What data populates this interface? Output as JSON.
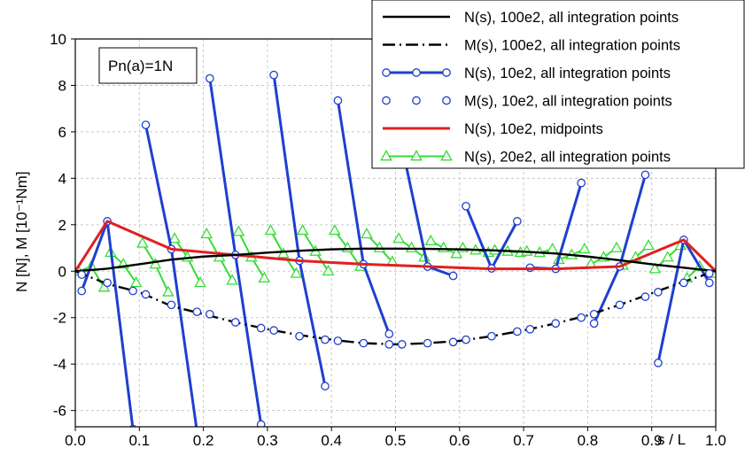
{
  "chart_data": {
    "type": "line",
    "title": "",
    "xlabel": "s / L",
    "ylabel": "N [N],  M [10⁻¹Nm]",
    "xlim": [
      0,
      1
    ],
    "ylim": [
      -6.7,
      10
    ],
    "x_ticks": [
      "0.0",
      "0.1",
      "0.2",
      "0.3",
      "0.4",
      "0.5",
      "0.6",
      "0.7",
      "0.8",
      "0.9",
      "1.0"
    ],
    "y_ticks": [
      "-6",
      "-4",
      "-2",
      "0",
      "2",
      "4",
      "6",
      "8",
      "10"
    ],
    "grid": true,
    "legend_position": "top-right",
    "annotation": "Pn(a)=1N",
    "series": [
      {
        "name": "N(s), 100e2, all integration points",
        "color": "#000000",
        "style": "solid",
        "marker": "none",
        "points": [
          [
            0,
            0
          ],
          [
            0.05,
            0.11
          ],
          [
            0.1,
            0.3
          ],
          [
            0.15,
            0.5
          ],
          [
            0.2,
            0.63
          ],
          [
            0.25,
            0.7
          ],
          [
            0.3,
            0.8
          ],
          [
            0.35,
            0.88
          ],
          [
            0.4,
            0.94
          ],
          [
            0.45,
            0.97
          ],
          [
            0.5,
            0.97
          ],
          [
            0.55,
            0.96
          ],
          [
            0.6,
            0.94
          ],
          [
            0.65,
            0.9
          ],
          [
            0.7,
            0.84
          ],
          [
            0.75,
            0.76
          ],
          [
            0.8,
            0.63
          ],
          [
            0.85,
            0.47
          ],
          [
            0.9,
            0.3
          ],
          [
            0.95,
            0.15
          ],
          [
            1,
            0
          ]
        ]
      },
      {
        "name": "M(s), 100e2, all integration points",
        "color": "#000000",
        "style": "dashed",
        "marker": "none",
        "points": [
          [
            0,
            0
          ],
          [
            0.05,
            -0.55
          ],
          [
            0.1,
            -0.9
          ],
          [
            0.15,
            -1.5
          ],
          [
            0.2,
            -1.85
          ],
          [
            0.25,
            -2.2
          ],
          [
            0.3,
            -2.5
          ],
          [
            0.35,
            -2.75
          ],
          [
            0.4,
            -2.95
          ],
          [
            0.45,
            -3.1
          ],
          [
            0.5,
            -3.15
          ],
          [
            0.55,
            -3.1
          ],
          [
            0.6,
            -3.0
          ],
          [
            0.65,
            -2.8
          ],
          [
            0.7,
            -2.55
          ],
          [
            0.75,
            -2.25
          ],
          [
            0.8,
            -1.9
          ],
          [
            0.85,
            -1.45
          ],
          [
            0.9,
            -0.95
          ],
          [
            0.95,
            -0.45
          ],
          [
            1,
            0
          ]
        ]
      },
      {
        "name": "N(s),   10e2, all integration points",
        "color": "#1f3fcf",
        "style": "solid",
        "marker": "circle",
        "segments": [
          [
            [
              0.01,
              -0.85
            ],
            [
              0.05,
              2.15
            ],
            [
              0.09,
              -6.8
            ]
          ],
          [
            [
              0.11,
              6.3
            ],
            [
              0.15,
              0.95
            ],
            [
              0.19,
              -6.9
            ]
          ],
          [
            [
              0.21,
              8.3
            ],
            [
              0.25,
              0.7
            ],
            [
              0.29,
              -6.6
            ]
          ],
          [
            [
              0.31,
              8.45
            ],
            [
              0.35,
              0.45
            ],
            [
              0.39,
              -4.95
            ]
          ],
          [
            [
              0.41,
              7.35
            ],
            [
              0.45,
              0.3
            ],
            [
              0.49,
              -2.7
            ]
          ],
          [
            [
              0.51,
              5.4
            ],
            [
              0.55,
              0.2
            ],
            [
              0.59,
              -0.2
            ]
          ],
          [
            [
              0.61,
              2.8
            ],
            [
              0.65,
              0.12
            ],
            [
              0.69,
              2.15
            ]
          ],
          [
            [
              0.71,
              0.15
            ],
            [
              0.75,
              0.1
            ],
            [
              0.79,
              3.8
            ]
          ],
          [
            [
              0.81,
              -2.25
            ],
            [
              0.85,
              0.2
            ],
            [
              0.89,
              4.15
            ]
          ],
          [
            [
              0.91,
              -3.95
            ],
            [
              0.95,
              1.35
            ],
            [
              0.99,
              -0.5
            ]
          ]
        ]
      },
      {
        "name": "M(s),   10e2, all integration points",
        "color": "#1f3fcf",
        "style": "none",
        "marker": "circle-open",
        "points": [
          [
            0.01,
            -0.15
          ],
          [
            0.05,
            -0.5
          ],
          [
            0.09,
            -0.85
          ],
          [
            0.11,
            -1.0
          ],
          [
            0.15,
            -1.45
          ],
          [
            0.19,
            -1.75
          ],
          [
            0.21,
            -1.85
          ],
          [
            0.25,
            -2.2
          ],
          [
            0.29,
            -2.45
          ],
          [
            0.31,
            -2.55
          ],
          [
            0.35,
            -2.8
          ],
          [
            0.39,
            -2.95
          ],
          [
            0.41,
            -3.0
          ],
          [
            0.45,
            -3.1
          ],
          [
            0.49,
            -3.15
          ],
          [
            0.51,
            -3.15
          ],
          [
            0.55,
            -3.1
          ],
          [
            0.59,
            -3.05
          ],
          [
            0.61,
            -2.95
          ],
          [
            0.65,
            -2.8
          ],
          [
            0.69,
            -2.6
          ],
          [
            0.71,
            -2.5
          ],
          [
            0.75,
            -2.25
          ],
          [
            0.79,
            -2.0
          ],
          [
            0.81,
            -1.85
          ],
          [
            0.85,
            -1.45
          ],
          [
            0.89,
            -1.1
          ],
          [
            0.91,
            -0.9
          ],
          [
            0.95,
            -0.5
          ],
          [
            0.99,
            -0.1
          ]
        ]
      },
      {
        "name": "N(s),   10e2,      midpoints",
        "color": "#e02020",
        "style": "solid",
        "marker": "none",
        "points": [
          [
            0,
            0
          ],
          [
            0.05,
            2.15
          ],
          [
            0.15,
            0.95
          ],
          [
            0.25,
            0.7
          ],
          [
            0.35,
            0.45
          ],
          [
            0.45,
            0.3
          ],
          [
            0.55,
            0.2
          ],
          [
            0.65,
            0.1
          ],
          [
            0.75,
            0.1
          ],
          [
            0.85,
            0.2
          ],
          [
            0.95,
            1.35
          ],
          [
            1,
            0
          ]
        ]
      },
      {
        "name": "N(s),   20e2, all integration points",
        "color": "#33dd33",
        "style": "solid",
        "marker": "triangle-open",
        "segments": [
          [
            [
              0.005,
              0.0
            ],
            [
              0.025,
              0.2
            ],
            [
              0.045,
              -0.7
            ]
          ],
          [
            [
              0.055,
              0.8
            ],
            [
              0.075,
              0.3
            ],
            [
              0.095,
              -0.5
            ]
          ],
          [
            [
              0.105,
              1.2
            ],
            [
              0.125,
              0.3
            ],
            [
              0.145,
              -0.9
            ]
          ],
          [
            [
              0.155,
              1.4
            ],
            [
              0.175,
              0.6
            ],
            [
              0.195,
              -0.5
            ]
          ],
          [
            [
              0.205,
              1.6
            ],
            [
              0.225,
              0.6
            ],
            [
              0.245,
              -0.4
            ]
          ],
          [
            [
              0.255,
              1.7
            ],
            [
              0.275,
              0.6
            ],
            [
              0.295,
              -0.3
            ]
          ],
          [
            [
              0.305,
              1.75
            ],
            [
              0.325,
              0.75
            ],
            [
              0.345,
              -0.1
            ]
          ],
          [
            [
              0.355,
              1.75
            ],
            [
              0.375,
              0.85
            ],
            [
              0.395,
              0.0
            ]
          ],
          [
            [
              0.405,
              1.75
            ],
            [
              0.425,
              1.0
            ],
            [
              0.445,
              0.2
            ]
          ],
          [
            [
              0.455,
              1.6
            ],
            [
              0.475,
              1.0
            ],
            [
              0.495,
              0.4
            ]
          ],
          [
            [
              0.505,
              1.4
            ],
            [
              0.525,
              1.0
            ],
            [
              0.545,
              0.6
            ]
          ],
          [
            [
              0.555,
              1.3
            ],
            [
              0.575,
              1.0
            ],
            [
              0.595,
              0.75
            ]
          ],
          [
            [
              0.605,
              1.0
            ],
            [
              0.625,
              0.9
            ],
            [
              0.645,
              0.8
            ]
          ],
          [
            [
              0.655,
              0.9
            ],
            [
              0.675,
              0.85
            ],
            [
              0.695,
              0.8
            ]
          ],
          [
            [
              0.705,
              0.85
            ],
            [
              0.725,
              0.8
            ],
            [
              0.745,
              0.95
            ]
          ],
          [
            [
              0.755,
              0.5
            ],
            [
              0.775,
              0.7
            ],
            [
              0.795,
              0.95
            ]
          ],
          [
            [
              0.805,
              0.3
            ],
            [
              0.825,
              0.6
            ],
            [
              0.845,
              1.0
            ]
          ],
          [
            [
              0.855,
              0.25
            ],
            [
              0.875,
              0.6
            ],
            [
              0.895,
              1.1
            ]
          ],
          [
            [
              0.905,
              0.1
            ],
            [
              0.925,
              0.6
            ],
            [
              0.945,
              1.1
            ]
          ],
          [
            [
              0.955,
              -0.3
            ],
            [
              0.975,
              0.2
            ],
            [
              0.995,
              -0.1
            ]
          ]
        ]
      }
    ]
  }
}
